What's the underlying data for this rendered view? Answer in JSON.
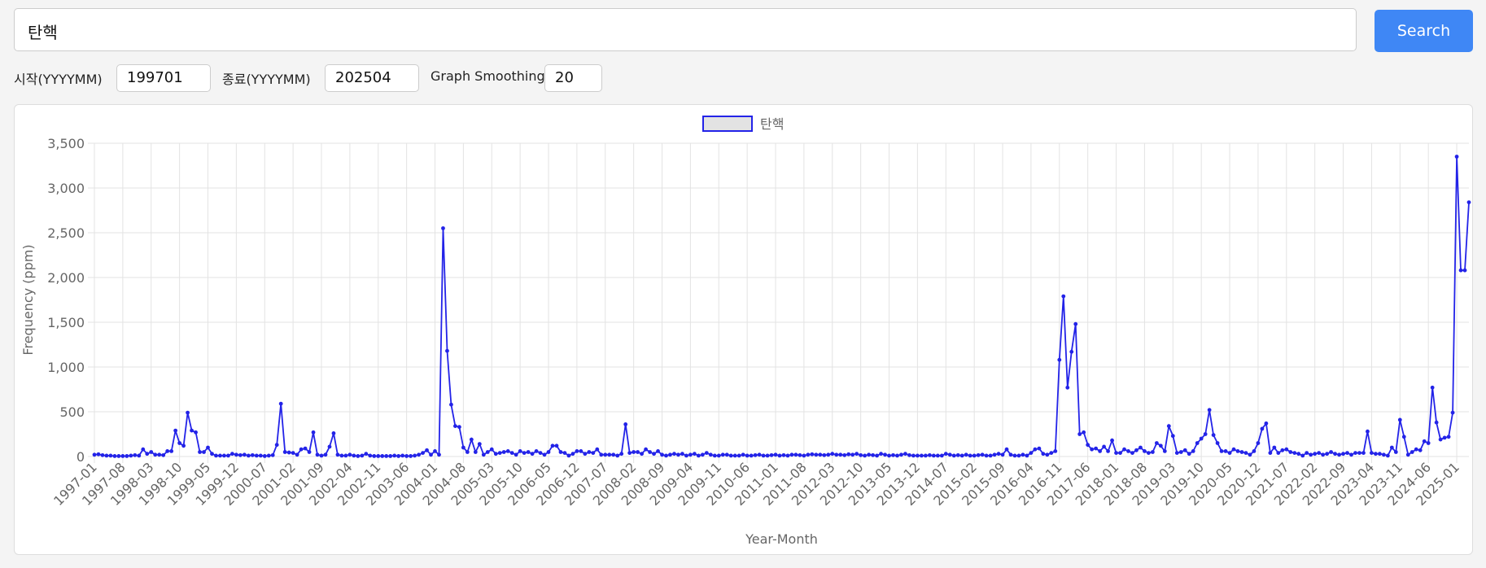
{
  "search": {
    "query": "탄핵",
    "button": "Search"
  },
  "controls": [
    {
      "label": "시작(YYYYMM)",
      "value": "199701"
    },
    {
      "label": "종료(YYYYMM)",
      "value": "202504"
    },
    {
      "label": "Graph Smoothing",
      "value": "20"
    }
  ],
  "chart_data": {
    "type": "line",
    "x_label": "Year-Month",
    "y_label": "Frequency (ppm)",
    "grid": true,
    "legend": "top",
    "categories": [
      "1997-01",
      null,
      null,
      null,
      null,
      null,
      null,
      "1997-08",
      null,
      null,
      null,
      null,
      null,
      null,
      "1998-03",
      null,
      null,
      null,
      null,
      null,
      null,
      "1998-10",
      null,
      null,
      null,
      null,
      null,
      null,
      "1999-05",
      null,
      null,
      null,
      null,
      null,
      null,
      "1999-12",
      null,
      null,
      null,
      null,
      null,
      null,
      "2000-07",
      null,
      null,
      null,
      null,
      null,
      null,
      "2001-02",
      null,
      null,
      null,
      null,
      null,
      null,
      "2001-09",
      null,
      null,
      null,
      null,
      null,
      null,
      "2002-04",
      null,
      null,
      null,
      null,
      null,
      null,
      "2002-11",
      null,
      null,
      null,
      null,
      null,
      null,
      "2003-06",
      null,
      null,
      null,
      null,
      null,
      null,
      "2004-01",
      null,
      null,
      null,
      null,
      null,
      null,
      "2004-08",
      null,
      null,
      null,
      null,
      null,
      null,
      "2005-03",
      null,
      null,
      null,
      null,
      null,
      null,
      "2005-10",
      null,
      null,
      null,
      null,
      null,
      null,
      "2006-05",
      null,
      null,
      null,
      null,
      null,
      null,
      "2006-12",
      null,
      null,
      null,
      null,
      null,
      null,
      "2007-07",
      null,
      null,
      null,
      null,
      null,
      null,
      "2008-02",
      null,
      null,
      null,
      null,
      null,
      null,
      "2008-09",
      null,
      null,
      null,
      null,
      null,
      null,
      "2009-04",
      null,
      null,
      null,
      null,
      null,
      null,
      "2009-11",
      null,
      null,
      null,
      null,
      null,
      null,
      "2010-06",
      null,
      null,
      null,
      null,
      null,
      null,
      "2011-01",
      null,
      null,
      null,
      null,
      null,
      null,
      "2011-08",
      null,
      null,
      null,
      null,
      null,
      null,
      "2012-03",
      null,
      null,
      null,
      null,
      null,
      null,
      "2012-10",
      null,
      null,
      null,
      null,
      null,
      null,
      "2013-05",
      null,
      null,
      null,
      null,
      null,
      null,
      "2013-12",
      null,
      null,
      null,
      null,
      null,
      null,
      "2014-07",
      null,
      null,
      null,
      null,
      null,
      null,
      "2015-02",
      null,
      null,
      null,
      null,
      null,
      null,
      "2015-09",
      null,
      null,
      null,
      null,
      null,
      null,
      "2016-04",
      null,
      null,
      null,
      null,
      null,
      null,
      "2016-11",
      null,
      null,
      null,
      null,
      null,
      null,
      "2017-06",
      null,
      null,
      null,
      null,
      null,
      null,
      "2018-01",
      null,
      null,
      null,
      null,
      null,
      null,
      "2018-08",
      null,
      null,
      null,
      null,
      null,
      null,
      "2019-03",
      null,
      null,
      null,
      null,
      null,
      null,
      "2019-10",
      null,
      null,
      null,
      null,
      null,
      null,
      "2020-05",
      null,
      null,
      null,
      null,
      null,
      null,
      "2020-12",
      null,
      null,
      null,
      null,
      null,
      null,
      "2021-07",
      null,
      null,
      null,
      null,
      null,
      null,
      "2022-02",
      null,
      null,
      null,
      null,
      null,
      null,
      "2022-09",
      null,
      null,
      null,
      null,
      null,
      null,
      "2023-04",
      null,
      null,
      null,
      null,
      null,
      null,
      "2023-11",
      null,
      null,
      null,
      null,
      null,
      null,
      "2024-06",
      null,
      null,
      null,
      null,
      null,
      null,
      "2025-01",
      null,
      null,
      null
    ],
    "series": [
      {
        "name": "탄핵",
        "color": "#2323e8",
        "fill": "#e3e3e3",
        "values": [
          20,
          25,
          15,
          10,
          10,
          5,
          5,
          5,
          5,
          10,
          15,
          10,
          80,
          30,
          50,
          20,
          20,
          15,
          60,
          60,
          290,
          150,
          120,
          490,
          290,
          270,
          50,
          50,
          100,
          30,
          10,
          10,
          10,
          10,
          30,
          20,
          15,
          20,
          10,
          15,
          10,
          10,
          5,
          10,
          15,
          130,
          590,
          50,
          45,
          40,
          20,
          80,
          90,
          50,
          270,
          20,
          10,
          20,
          110,
          260,
          20,
          10,
          10,
          20,
          10,
          5,
          10,
          30,
          10,
          5,
          5,
          5,
          5,
          5,
          10,
          5,
          10,
          5,
          5,
          10,
          20,
          40,
          70,
          20,
          60,
          20,
          2550,
          1180,
          580,
          340,
          330,
          100,
          50,
          190,
          50,
          140,
          20,
          50,
          80,
          30,
          40,
          50,
          60,
          40,
          20,
          60,
          40,
          50,
          30,
          60,
          40,
          20,
          50,
          120,
          120,
          50,
          40,
          10,
          30,
          60,
          60,
          30,
          50,
          40,
          80,
          20,
          20,
          20,
          20,
          10,
          30,
          360,
          40,
          50,
          50,
          30,
          80,
          50,
          30,
          60,
          20,
          10,
          20,
          30,
          20,
          30,
          10,
          20,
          30,
          10,
          20,
          40,
          20,
          10,
          10,
          20,
          20,
          10,
          10,
          10,
          20,
          10,
          10,
          15,
          20,
          10,
          10,
          15,
          20,
          10,
          15,
          10,
          20,
          20,
          15,
          10,
          20,
          25,
          20,
          20,
          15,
          20,
          30,
          20,
          20,
          15,
          25,
          20,
          30,
          15,
          10,
          20,
          15,
          10,
          30,
          20,
          10,
          15,
          10,
          20,
          30,
          15,
          10,
          10,
          10,
          10,
          15,
          10,
          10,
          10,
          30,
          20,
          10,
          15,
          10,
          20,
          10,
          10,
          15,
          20,
          10,
          10,
          20,
          30,
          20,
          80,
          20,
          10,
          10,
          20,
          10,
          40,
          80,
          90,
          30,
          20,
          40,
          60,
          1080,
          1790,
          770,
          1170,
          1480,
          250,
          270,
          130,
          80,
          90,
          60,
          110,
          60,
          180,
          40,
          40,
          80,
          60,
          40,
          70,
          100,
          60,
          40,
          50,
          150,
          120,
          60,
          340,
          230,
          40,
          50,
          70,
          30,
          60,
          150,
          200,
          250,
          520,
          240,
          150,
          60,
          60,
          40,
          80,
          60,
          50,
          40,
          20,
          60,
          150,
          310,
          370,
          40,
          100,
          40,
          70,
          80,
          50,
          40,
          30,
          10,
          40,
          20,
          30,
          40,
          20,
          30,
          50,
          30,
          20,
          30,
          40,
          20,
          40,
          40,
          40,
          280,
          40,
          30,
          30,
          20,
          10,
          100,
          50,
          410,
          220,
          20,
          50,
          80,
          70,
          170,
          150,
          770,
          380,
          190,
          210,
          220,
          490,
          3350,
          2080,
          2080,
          2840
        ]
      }
    ],
    "ylim": [
      0,
      3500
    ],
    "yticks": [
      0,
      500,
      {
        "value": 1000,
        "label": "1,000"
      },
      {
        "value": 1500,
        "label": "1,500"
      },
      {
        "value": 2000,
        "label": "2,000"
      },
      {
        "value": 2500,
        "label": "2,500"
      },
      {
        "value": 3000,
        "label": "3,000"
      },
      {
        "value": 3500,
        "label": "3,500"
      }
    ]
  }
}
